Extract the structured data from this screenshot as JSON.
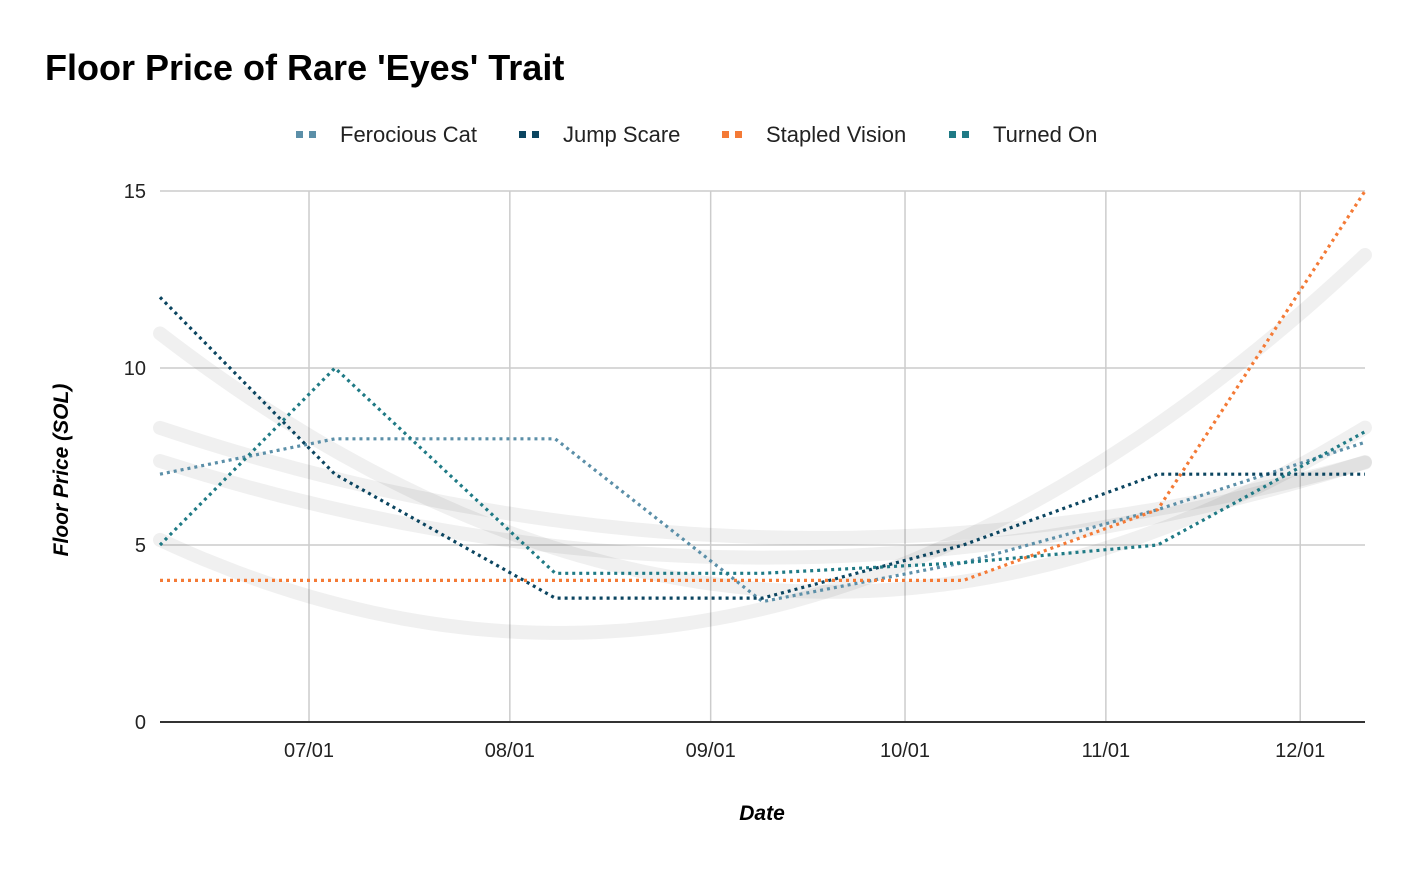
{
  "chart_data": {
    "type": "line",
    "title": "Floor Price of Rare 'Eyes' Trait",
    "xlabel": "Date",
    "ylabel": "Floor Price (SOL)",
    "x_tick_labels": [
      "07/01",
      "08/01",
      "09/01",
      "10/01",
      "11/01",
      "12/01"
    ],
    "y_tick_labels": [
      "0",
      "5",
      "10",
      "15"
    ],
    "ylim": [
      0,
      15
    ],
    "xlim": [
      "2021-06-08",
      "2021-12-11"
    ],
    "grid": true,
    "legend_position": "top-center",
    "line_style": "dotted",
    "trendlines": "polynomial",
    "series": [
      {
        "name": "Ferocious Cat",
        "color": "#5b8fa8",
        "points": [
          {
            "x": "2021-06-08",
            "y": 7.0
          },
          {
            "x": "2021-07-05",
            "y": 8.0
          },
          {
            "x": "2021-08-08",
            "y": 8.0
          },
          {
            "x": "2021-09-09",
            "y": 3.4
          },
          {
            "x": "2021-10-10",
            "y": 4.5
          },
          {
            "x": "2021-11-09",
            "y": 6.0
          },
          {
            "x": "2021-12-11",
            "y": 7.9
          }
        ]
      },
      {
        "name": "Jump Scare",
        "color": "#0b4560",
        "points": [
          {
            "x": "2021-06-08",
            "y": 12.0
          },
          {
            "x": "2021-07-05",
            "y": 7.0
          },
          {
            "x": "2021-08-08",
            "y": 3.5
          },
          {
            "x": "2021-09-09",
            "y": 3.5
          },
          {
            "x": "2021-10-10",
            "y": 5.0
          },
          {
            "x": "2021-11-09",
            "y": 7.0
          },
          {
            "x": "2021-12-11",
            "y": 7.0
          }
        ]
      },
      {
        "name": "Stapled Vision",
        "color": "#f47a36",
        "points": [
          {
            "x": "2021-06-08",
            "y": 4.0
          },
          {
            "x": "2021-07-05",
            "y": 4.0
          },
          {
            "x": "2021-08-08",
            "y": 4.0
          },
          {
            "x": "2021-09-09",
            "y": 4.0
          },
          {
            "x": "2021-10-10",
            "y": 4.0
          },
          {
            "x": "2021-11-09",
            "y": 6.0
          },
          {
            "x": "2021-12-11",
            "y": 15.0
          }
        ]
      },
      {
        "name": "Turned On",
        "color": "#1f7a85",
        "points": [
          {
            "x": "2021-06-08",
            "y": 5.0
          },
          {
            "x": "2021-07-05",
            "y": 10.0
          },
          {
            "x": "2021-08-08",
            "y": 4.2
          },
          {
            "x": "2021-09-09",
            "y": 4.2
          },
          {
            "x": "2021-10-10",
            "y": 4.5
          },
          {
            "x": "2021-11-09",
            "y": 5.0
          },
          {
            "x": "2021-12-11",
            "y": 8.2
          }
        ]
      }
    ]
  }
}
